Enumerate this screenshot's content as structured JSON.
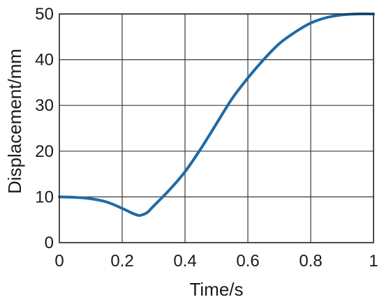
{
  "chart_data": {
    "type": "line",
    "title": "",
    "xlabel": "Time/s",
    "ylabel": "Displacement/mm",
    "xlim": [
      0,
      1
    ],
    "ylim": [
      0,
      50
    ],
    "x_ticks": [
      0,
      0.2,
      0.4,
      0.6,
      0.8,
      1
    ],
    "x_tick_labels": [
      "0",
      "0.2",
      "0.4",
      "0.6",
      "0.8",
      "1"
    ],
    "y_ticks": [
      0,
      10,
      20,
      30,
      40,
      50
    ],
    "y_tick_labels": [
      "0",
      "10",
      "20",
      "30",
      "40",
      "50"
    ],
    "grid": true,
    "legend": "none",
    "series": [
      {
        "color": "#1f6aa6",
        "x": [
          0,
          0.05,
          0.1,
          0.15,
          0.2,
          0.23,
          0.25,
          0.26,
          0.28,
          0.3,
          0.35,
          0.4,
          0.45,
          0.5,
          0.55,
          0.6,
          0.65,
          0.7,
          0.75,
          0.8,
          0.85,
          0.9,
          0.95,
          1.0
        ],
        "y": [
          10,
          9.9,
          9.6,
          8.9,
          7.5,
          6.5,
          6.0,
          6.0,
          6.6,
          8.0,
          11.5,
          15.5,
          20.5,
          26.0,
          31.5,
          36.0,
          40.0,
          43.5,
          46.0,
          48.0,
          49.2,
          49.8,
          50.0,
          50.0
        ]
      }
    ]
  }
}
